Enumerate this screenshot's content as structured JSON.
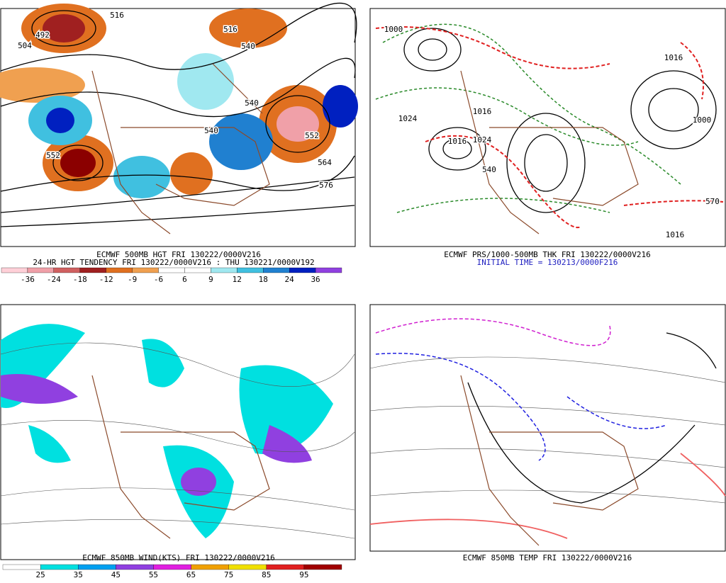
{
  "panels": [
    {
      "captions": [
        "ECMWF 500MB HGT FRI 130222/0000V216",
        "24-HR HGT TENDENCY FRI 130222/0000V216 : THU 130221/0000V192"
      ],
      "colorbar_labels": [
        -36,
        -24,
        -18,
        -12,
        -9,
        -6,
        6,
        9,
        12,
        18,
        24,
        36
      ],
      "contour_labels": [
        "516",
        "492",
        "504",
        "540",
        "552",
        "564",
        "576",
        "540",
        "552",
        "516",
        "540"
      ]
    },
    {
      "captions": [
        "ECMWF PRS/1000-500MB THK FRI 130222/0000V216",
        "INITIAL TIME = 130213/0000F216"
      ],
      "contour_labels": [
        "1000",
        "1024",
        "1016",
        "1024",
        "1016",
        "1016",
        "1000",
        "1016",
        "570",
        "540"
      ]
    },
    {
      "captions": [
        "ECMWF 850MB WIND(KTS) FRI 130222/0000V216"
      ],
      "colorbar_labels": [
        25,
        35,
        45,
        55,
        65,
        75,
        85,
        95
      ]
    },
    {
      "captions": [
        "ECMWF 850MB TEMP FRI 130222/0000V216"
      ]
    }
  ]
}
